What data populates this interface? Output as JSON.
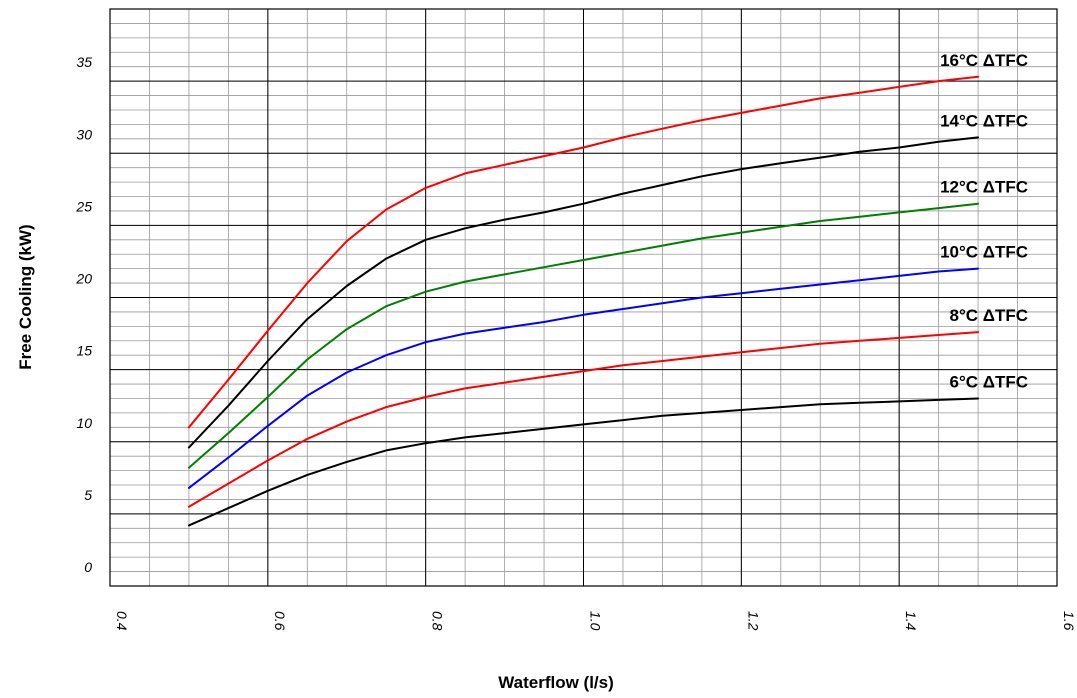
{
  "chart_data": {
    "type": "line",
    "title": "",
    "xlabel": "Waterflow (l/s)",
    "ylabel": "Free Cooling (kW)",
    "xlim": [
      0.4,
      1.6
    ],
    "ylim": [
      0,
      40
    ],
    "grid": true,
    "legend": "inline labels at line ends",
    "x_ticks": [
      "0.4",
      "0.6",
      "0.8",
      "1.0",
      "1.2",
      "1.4",
      "1.6"
    ],
    "y_ticks": [
      "0",
      "5",
      "10",
      "15",
      "20",
      "25",
      "30",
      "35",
      "40"
    ],
    "x": [
      0.5,
      0.55,
      0.6,
      0.65,
      0.7,
      0.75,
      0.8,
      0.85,
      0.9,
      0.95,
      1.0,
      1.05,
      1.1,
      1.15,
      1.2,
      1.25,
      1.3,
      1.35,
      1.4,
      1.45,
      1.5
    ],
    "series": [
      {
        "name": "16°C ΔTFC",
        "color": "#ff0000",
        "values": [
          11.0,
          14.3,
          17.7,
          21.0,
          23.9,
          26.1,
          27.6,
          28.6,
          29.2,
          29.8,
          30.4,
          31.1,
          31.7,
          32.3,
          32.8,
          33.3,
          33.8,
          34.2,
          34.6,
          35.0,
          35.3
        ]
      },
      {
        "name": "14°C ΔTFC",
        "color": "#000000",
        "values": [
          9.6,
          12.5,
          15.6,
          18.5,
          20.8,
          22.7,
          24.0,
          24.8,
          25.4,
          25.9,
          26.5,
          27.2,
          27.8,
          28.4,
          28.9,
          29.3,
          29.7,
          30.1,
          30.4,
          30.8,
          31.1
        ]
      },
      {
        "name": "12°C ΔTFC",
        "color": "#008000",
        "values": [
          8.2,
          10.6,
          13.1,
          15.7,
          17.8,
          19.4,
          20.4,
          21.1,
          21.6,
          22.1,
          22.6,
          23.1,
          23.6,
          24.1,
          24.5,
          24.9,
          25.3,
          25.6,
          25.9,
          26.2,
          26.5
        ]
      },
      {
        "name": "10°C ΔTFC",
        "color": "#0000ff",
        "values": [
          6.8,
          8.9,
          11.1,
          13.2,
          14.8,
          16.0,
          16.9,
          17.5,
          17.9,
          18.3,
          18.8,
          19.2,
          19.6,
          20.0,
          20.3,
          20.6,
          20.9,
          21.2,
          21.5,
          21.8,
          22.0
        ]
      },
      {
        "name": "8°C ΔTFC",
        "color": "#ff0000",
        "values": [
          5.5,
          7.1,
          8.7,
          10.2,
          11.4,
          12.4,
          13.1,
          13.7,
          14.1,
          14.5,
          14.9,
          15.3,
          15.6,
          15.9,
          16.2,
          16.5,
          16.8,
          17.0,
          17.2,
          17.4,
          17.6
        ]
      },
      {
        "name": "6°C ΔTFC",
        "color": "#000000",
        "values": [
          4.2,
          5.4,
          6.6,
          7.7,
          8.6,
          9.4,
          9.9,
          10.3,
          10.6,
          10.9,
          11.2,
          11.5,
          11.8,
          12.0,
          12.2,
          12.4,
          12.6,
          12.7,
          12.8,
          12.9,
          13.0
        ]
      }
    ]
  }
}
